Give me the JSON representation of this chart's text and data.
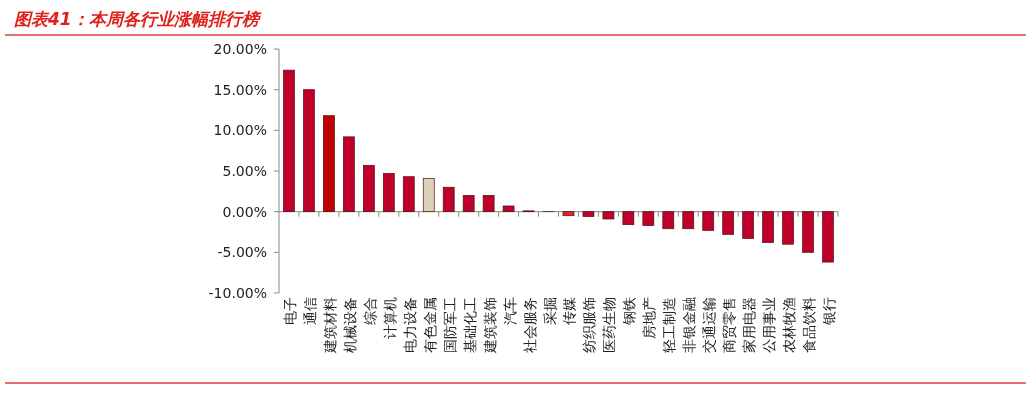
{
  "chart_data": {
    "type": "bar",
    "title": "图表41：本周各行业涨幅排行榜",
    "categories": [
      "电子",
      "通信",
      "建筑材料",
      "机械设备",
      "综合",
      "计算机",
      "电力设备",
      "有色金属",
      "国防军工",
      "基础化工",
      "建筑装饰",
      "汽车",
      "社会服务",
      "采掘",
      "传媒",
      "纺织服饰",
      "医药生物",
      "钢铁",
      "房地产",
      "轻工制造",
      "非银金融",
      "交通运输",
      "商贸零售",
      "家用电器",
      "公用事业",
      "农林牧渔",
      "食品饮料",
      "银行"
    ],
    "values": [
      17.4,
      15.0,
      11.8,
      9.2,
      5.7,
      4.7,
      4.3,
      4.1,
      3.0,
      2.0,
      2.0,
      0.7,
      0.1,
      0,
      -0.5,
      -0.6,
      -0.9,
      -1.6,
      -1.7,
      -2.1,
      -2.1,
      -2.3,
      -2.8,
      -3.3,
      -3.8,
      -4.0,
      -5.0,
      -6.2
    ],
    "colors": [
      "#c0002a",
      "#c0002a",
      "#c00000",
      "#c0002a",
      "#c0002a",
      "#c0002a",
      "#c0002a",
      "#ddd0b8",
      "#c0002a",
      "#c0002a",
      "#c0002a",
      "#c0002a",
      "#c0002a",
      "#c0002a",
      "#e8241f",
      "#c0002a",
      "#c0002a",
      "#c0002a",
      "#c0002a",
      "#c0002a",
      "#c0002a",
      "#c0002a",
      "#c0002a",
      "#c0002a",
      "#c0002a",
      "#c0002a",
      "#c0002a",
      "#c0002a"
    ],
    "ylim": [
      -10,
      20
    ],
    "yticks": [
      {
        "value": -10,
        "label": "-10.00%"
      },
      {
        "value": -5,
        "label": "-5.00%"
      },
      {
        "value": 0,
        "label": "0.00%"
      },
      {
        "value": 5,
        "label": "5.00%"
      },
      {
        "value": 10,
        "label": "10.00%"
      },
      {
        "value": 15,
        "label": "15.00%"
      },
      {
        "value": 20,
        "label": "20.00%"
      }
    ]
  }
}
